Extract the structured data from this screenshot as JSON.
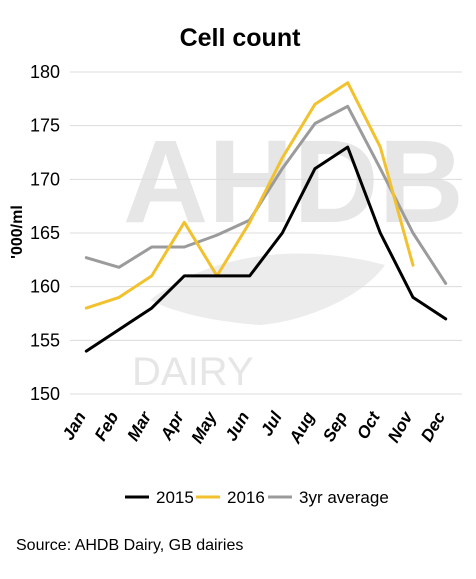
{
  "chart_data": {
    "type": "line",
    "title": "Cell count",
    "ylabel": "'000/ml",
    "xlabel": "",
    "categories": [
      "Jan",
      "Feb",
      "Mar",
      "Apr",
      "May",
      "Jun",
      "Jul",
      "Aug",
      "Sep",
      "Oct",
      "Nov",
      "Dec"
    ],
    "ylim": [
      150,
      180
    ],
    "yticks": [
      150,
      155,
      160,
      165,
      170,
      175,
      180
    ],
    "grid": true,
    "legend_position": "bottom",
    "series": [
      {
        "name": "2015",
        "color": "#000000",
        "values": [
          154,
          156,
          158,
          161,
          161,
          161,
          165,
          171,
          173,
          165,
          159,
          157
        ]
      },
      {
        "name": "2016",
        "color": "#f2c12e",
        "values": [
          158,
          159,
          161,
          166,
          161,
          166,
          172,
          177,
          179,
          173,
          162,
          null
        ]
      },
      {
        "name": "3yr average",
        "color": "#9b9b9b",
        "values": [
          162.7,
          161.8,
          163.7,
          163.7,
          164.8,
          166.2,
          171,
          175.2,
          176.8,
          171,
          165,
          160.3
        ]
      }
    ]
  },
  "watermark": {
    "brand": "AHDB",
    "sub": "DAIRY"
  },
  "source": "Source: AHDB Dairy, GB dairies"
}
